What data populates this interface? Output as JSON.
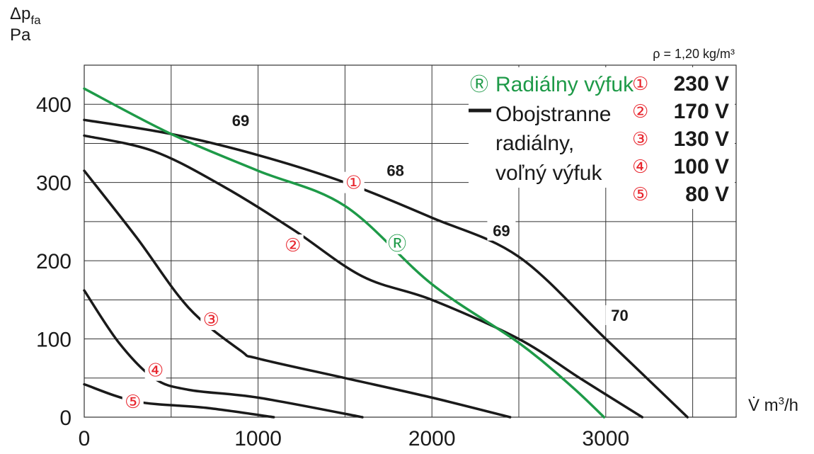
{
  "chart_data": {
    "type": "line",
    "y_axis_label": "Δp",
    "y_axis_label_sub": "fa",
    "y_axis_unit": "Pa",
    "x_axis_label": "V̇ m",
    "x_axis_label_sup": "3",
    "x_axis_label_end": "/h",
    "xlim": [
      0,
      3750
    ],
    "ylim": [
      0,
      450
    ],
    "x_ticks": [
      0,
      1000,
      2000,
      3000
    ],
    "y_ticks": [
      0,
      100,
      200,
      300,
      400
    ],
    "x_tick_labels": [
      "0",
      "1000",
      "2000",
      "3000"
    ],
    "y_tick_labels": [
      "0",
      "100",
      "200",
      "300",
      "400"
    ],
    "grid": true,
    "density_text": "ρ = 1,20 kg/m³",
    "series": [
      {
        "name": "230 V",
        "marker": "①",
        "color": "#1a1a1a",
        "x": [
          0,
          500,
          1000,
          1500,
          2000,
          2500,
          3000,
          3470
        ],
        "y": [
          380,
          362,
          335,
          300,
          255,
          205,
          100,
          0
        ],
        "marker_at": [
          1550,
          300
        ]
      },
      {
        "name": "170 V",
        "marker": "②",
        "color": "#1a1a1a",
        "x": [
          0,
          400,
          800,
          1200,
          1600,
          2000,
          2500,
          2850,
          3210
        ],
        "y": [
          360,
          340,
          295,
          240,
          180,
          150,
          100,
          50,
          0
        ],
        "marker_at": [
          1200,
          220
        ]
      },
      {
        "name": "130 V",
        "marker": "③",
        "color": "#1a1a1a",
        "x": [
          0,
          300,
          600,
          900,
          1000,
          1500,
          2000,
          2450
        ],
        "y": [
          315,
          230,
          140,
          85,
          75,
          50,
          25,
          0
        ],
        "marker_at": [
          730,
          125
        ]
      },
      {
        "name": "100 V",
        "marker": "④",
        "color": "#1a1a1a",
        "x": [
          0,
          200,
          400,
          600,
          1000,
          1600
        ],
        "y": [
          162,
          95,
          50,
          35,
          25,
          0
        ],
        "marker_at": [
          410,
          60
        ]
      },
      {
        "name": "80 V",
        "marker": "⑤",
        "color": "#1a1a1a",
        "x": [
          0,
          300,
          700,
          1090
        ],
        "y": [
          42,
          20,
          12,
          0
        ],
        "marker_at": [
          280,
          20
        ]
      },
      {
        "name": "Radiálny výfuk",
        "marker": "Ⓡ",
        "color": "#1e9a48",
        "x": [
          0,
          500,
          1000,
          1500,
          2000,
          2500,
          2800,
          2990
        ],
        "y": [
          420,
          362,
          315,
          270,
          170,
          95,
          40,
          0
        ],
        "marker_at": [
          1800,
          222
        ]
      }
    ],
    "annotations": [
      {
        "text": "69",
        "x": 900,
        "y": 374
      },
      {
        "text": "68",
        "x": 1790,
        "y": 310
      },
      {
        "text": "69",
        "x": 2400,
        "y": 233
      },
      {
        "text": "70",
        "x": 3080,
        "y": 125
      }
    ],
    "legend": {
      "placement": "top-right",
      "green_symbol": "Ⓡ",
      "green_label": "Radiálny výfuk",
      "black_label_lines": [
        "Obojstranne",
        "radiálny,",
        "voľný výfuk"
      ],
      "voltages": [
        {
          "marker": "①",
          "label": "230 V"
        },
        {
          "marker": "②",
          "label": "170 V"
        },
        {
          "marker": "③",
          "label": "130 V"
        },
        {
          "marker": "④",
          "label": "100 V"
        },
        {
          "marker": "⑤",
          "label": "80 V"
        }
      ]
    },
    "colors": {
      "black_curve": "#1a1a1a",
      "green_curve": "#1e9a48",
      "marker_red": "#e8262e",
      "grid": "#333333"
    }
  }
}
